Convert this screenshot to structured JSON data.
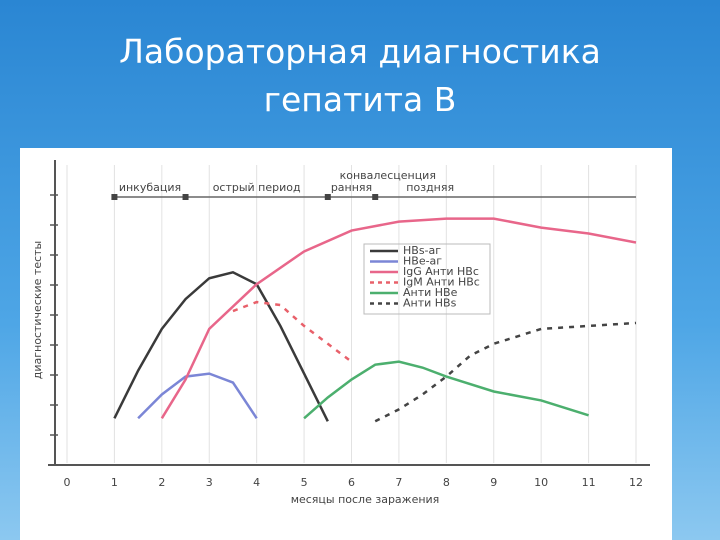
{
  "chart_data": {
    "type": "line",
    "title": "Лабораторная диагностика гепатита В",
    "x_label": "месяцы после заражения",
    "y_label": "диагностические тесты",
    "xlim": [
      0,
      12
    ],
    "xticks": [
      0,
      1,
      2,
      3,
      4,
      5,
      6,
      7,
      8,
      9,
      10,
      11,
      12
    ],
    "ylim": [
      0,
      10
    ],
    "grid": true,
    "phase_group": "конвалесценция",
    "phases": [
      {
        "name": "инкубация",
        "start": 1,
        "end": 2.5
      },
      {
        "name": "острый период",
        "start": 2.5,
        "end": 5.5
      },
      {
        "name": "ранняя",
        "start": 5.5,
        "end": 6.5
      },
      {
        "name": "поздняя",
        "start": 6.5,
        "end": 12
      }
    ],
    "series": [
      {
        "name": "HBs-аг",
        "color": "#3a3a3a",
        "dashed": false,
        "x": [
          1,
          1.5,
          2,
          2.5,
          3,
          3.5,
          4,
          4.5,
          5,
          5.5
        ],
        "values": [
          1.5,
          3.1,
          4.5,
          5.5,
          6.2,
          6.4,
          6.0,
          4.6,
          3.0,
          1.4
        ]
      },
      {
        "name": "HBe-аг",
        "color": "#7b86d6",
        "dashed": false,
        "x": [
          1.5,
          2,
          2.5,
          3,
          3.5,
          4
        ],
        "values": [
          1.5,
          2.3,
          2.9,
          3.0,
          2.7,
          1.5
        ]
      },
      {
        "name": "IgG Анти HBc",
        "color": "#e8668a",
        "dashed": false,
        "x": [
          2,
          2.5,
          3,
          4,
          5,
          6,
          7,
          8,
          9,
          10,
          11,
          12
        ],
        "values": [
          1.5,
          2.8,
          4.5,
          6.0,
          7.1,
          7.8,
          8.1,
          8.2,
          8.2,
          7.9,
          7.7,
          7.4
        ]
      },
      {
        "name": "IgM Анти HBc",
        "color": "#e8606a",
        "dashed": true,
        "x": [
          3.5,
          4,
          4.5,
          5,
          5.5,
          6
        ],
        "values": [
          5.1,
          5.4,
          5.3,
          4.6,
          4.0,
          3.4
        ]
      },
      {
        "name": "Анти HBe",
        "color": "#4caf6e",
        "dashed": false,
        "x": [
          5,
          5.5,
          6,
          6.5,
          7,
          7.5,
          8,
          9,
          10,
          11
        ],
        "values": [
          1.5,
          2.2,
          2.8,
          3.3,
          3.4,
          3.2,
          2.9,
          2.4,
          2.1,
          1.6
        ]
      },
      {
        "name": "Анти HBs",
        "color": "#444444",
        "dashed": true,
        "x": [
          6.5,
          7,
          7.5,
          8,
          8.5,
          9,
          10,
          11,
          12
        ],
        "values": [
          1.4,
          1.8,
          2.3,
          2.9,
          3.6,
          4.0,
          4.5,
          4.6,
          4.7
        ]
      }
    ]
  }
}
